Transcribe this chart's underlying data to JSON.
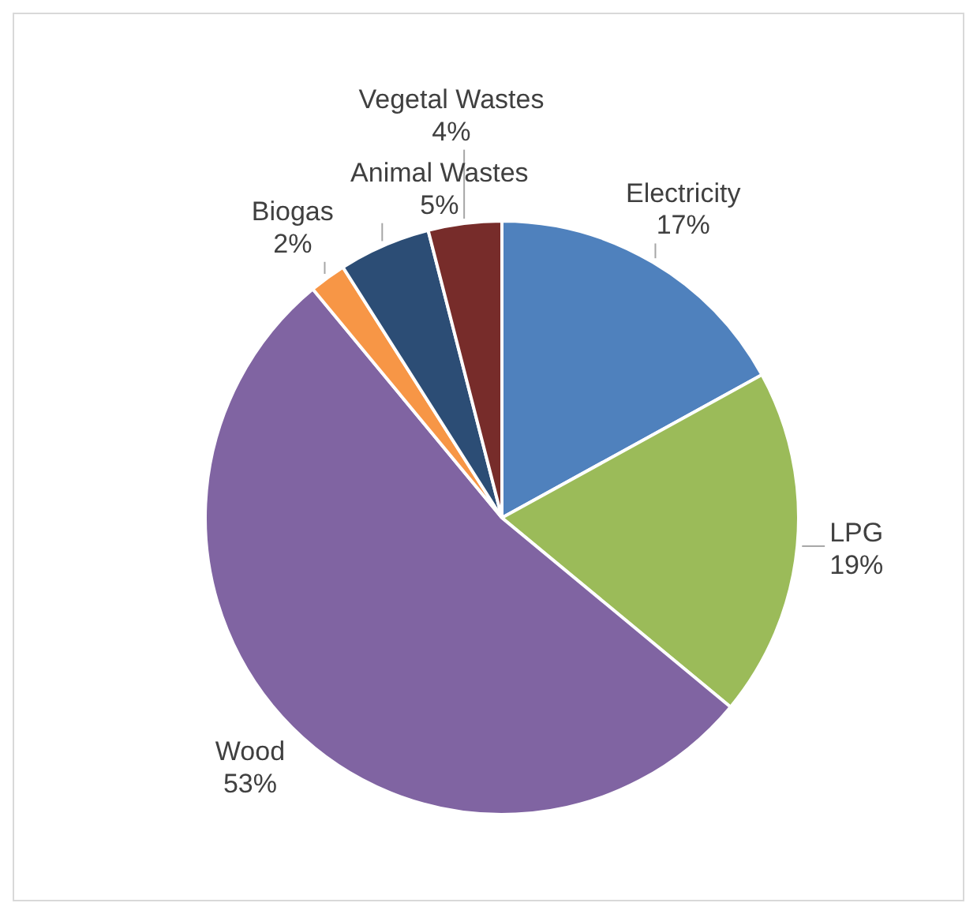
{
  "chart_data": {
    "type": "pie",
    "categories": [
      "Electricity",
      "LPG",
      "Wood",
      "Biogas",
      "Animal Wastes",
      "Vegetal Wastes"
    ],
    "values": [
      17,
      19,
      53,
      2,
      5,
      4
    ],
    "value_labels": [
      "17%",
      "19%",
      "53%",
      "2%",
      "5%",
      "4%"
    ],
    "colors": [
      "#4f81bd",
      "#9bbb59",
      "#8064a2",
      "#f79646",
      "#2c4d75",
      "#772c2a"
    ],
    "legend": false
  }
}
